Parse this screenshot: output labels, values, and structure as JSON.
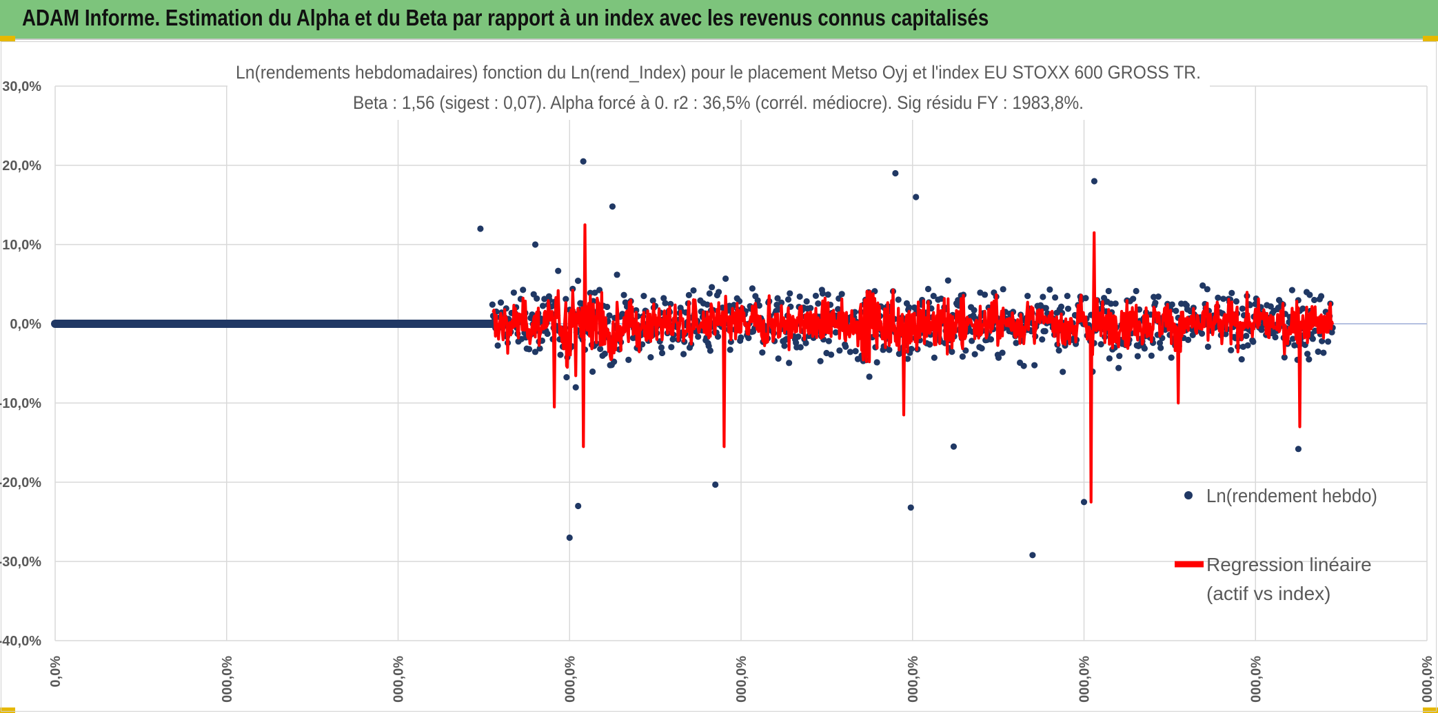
{
  "banner": {
    "title": "ADAM Informe. Estimation du Alpha et du Beta par rapport à un index avec les revenus connus capitalisés"
  },
  "colors": {
    "banner_bg": "#7dc47c",
    "scatter": "#203864",
    "regression": "#ff0000",
    "gridline": "#d9d9d9"
  },
  "chart_data": {
    "type": "scatter",
    "title": "Ln(rendements hebdomadaires) fonction du Ln(rend_Index) pour le placement Metso Oyj et l'index EU STOXX 600 GROSS TR.",
    "subtitle": "Beta : 1,56 (sigest : 0,07). Alpha forcé à 0. r2 : 36,5% (corrél. médiocre). Sig résidu FY : 1983,8%.",
    "ylim": [
      -0.4,
      0.3
    ],
    "yticks": [
      0.3,
      0.2,
      0.1,
      0.0,
      -0.1,
      -0.2,
      -0.3,
      -0.4
    ],
    "ytick_labels": [
      "30,0%",
      "20,0%",
      "10,0%",
      "0,0%",
      "-10,0%",
      "-20,0%",
      "-30,0%",
      "-40,0%"
    ],
    "x_positions": [
      0,
      1,
      2,
      3,
      4,
      5,
      6,
      7,
      8
    ],
    "xtick_labels": [
      "0,0%",
      "000,0%",
      "000,0%",
      "000,0%",
      "000,0%",
      "000,0%",
      "000,0%",
      "000,0%",
      "000,0%"
    ],
    "grid": true,
    "legend_position": "right",
    "series": [
      {
        "name": "Ln(rendement hebdo)",
        "kind": "scatter",
        "x_range": [
          0.0,
          2.55
        ],
        "flat_value": 0.0,
        "highlights": [
          {
            "x": 3.08,
            "y": 0.205
          },
          {
            "x": 4.9,
            "y": 0.19
          },
          {
            "x": 5.02,
            "y": 0.16
          },
          {
            "x": 6.06,
            "y": 0.18
          },
          {
            "x": 3.25,
            "y": 0.148
          },
          {
            "x": 3.0,
            "y": -0.27
          },
          {
            "x": 3.05,
            "y": -0.23
          },
          {
            "x": 5.7,
            "y": -0.292
          },
          {
            "x": 4.99,
            "y": -0.232
          },
          {
            "x": 3.85,
            "y": -0.203
          },
          {
            "x": 7.25,
            "y": -0.158
          },
          {
            "x": 5.24,
            "y": -0.155
          },
          {
            "x": 6.0,
            "y": -0.225
          },
          {
            "x": 2.48,
            "y": 0.12
          },
          {
            "x": 2.8,
            "y": 0.1
          }
        ]
      },
      {
        "name": "Regression linéaire (actif vs index)",
        "kind": "line",
        "beta": 1.56,
        "alpha": 0.0,
        "extremes": [
          {
            "x": 3.09,
            "y": 0.125
          },
          {
            "x": 6.04,
            "y": -0.225
          },
          {
            "x": 3.08,
            "y": -0.155
          },
          {
            "x": 3.9,
            "y": -0.155
          },
          {
            "x": 7.26,
            "y": -0.13
          },
          {
            "x": 6.06,
            "y": 0.115
          },
          {
            "x": 4.95,
            "y": -0.115
          },
          {
            "x": 2.91,
            "y": -0.105
          },
          {
            "x": 6.55,
            "y": -0.1
          }
        ]
      }
    ]
  }
}
